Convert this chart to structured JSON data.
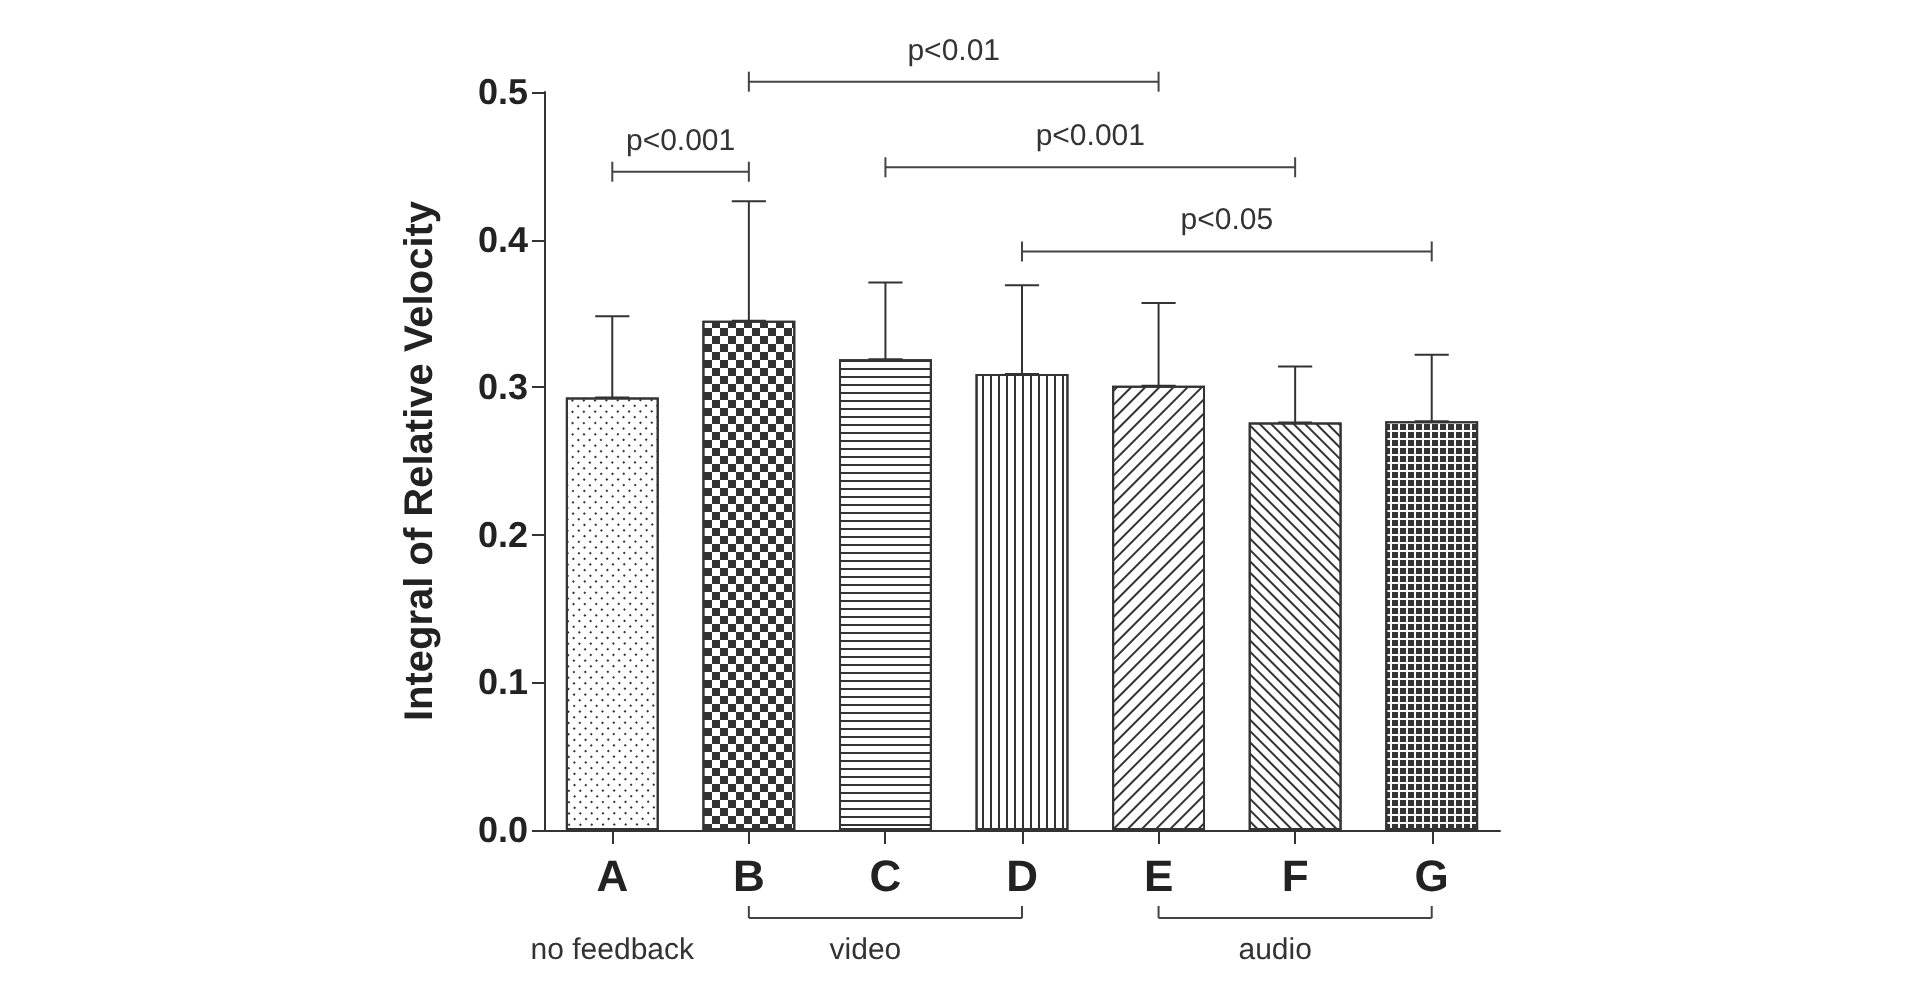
{
  "chart_data": {
    "type": "bar",
    "ylabel": "Integral of Relative Velocity",
    "categories": [
      "A",
      "B",
      "C",
      "D",
      "E",
      "F",
      "G"
    ],
    "values": [
      0.293,
      0.345,
      0.319,
      0.309,
      0.301,
      0.276,
      0.277
    ],
    "errors": [
      [
        0.293,
        0.348
      ],
      [
        0.345,
        0.426
      ],
      [
        0.319,
        0.371
      ],
      [
        0.309,
        0.369
      ],
      [
        0.301,
        0.357
      ],
      [
        0.276,
        0.314
      ],
      [
        0.277,
        0.322
      ]
    ],
    "color": "#ffffff",
    "ylim": [
      0,
      0.5
    ],
    "yticks": [
      {
        "value": 0,
        "label": "0.0"
      },
      0.1,
      0.2,
      0.3,
      0.4,
      0.5
    ],
    "grid": false,
    "annotations": [
      "p<0.001",
      "p<0.01",
      "p<0.001",
      "p<0.05",
      "no feedback",
      "video",
      "audio"
    ]
  }
}
